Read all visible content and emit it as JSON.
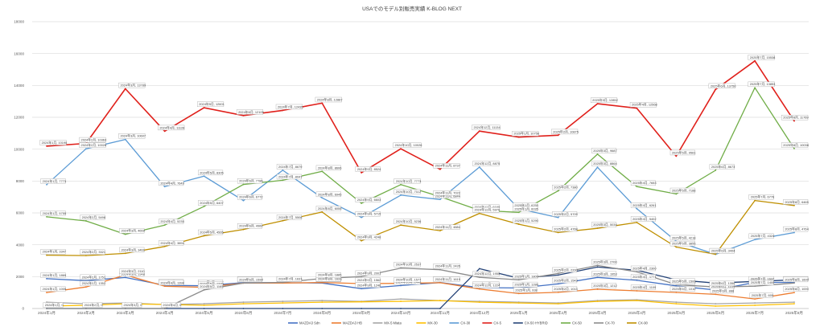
{
  "chart_data": {
    "type": "line",
    "title": "USAでのモデル別販売実績 K-BLOG NEXT",
    "xlabel": "",
    "ylabel": "",
    "ylim": [
      0,
      18000
    ],
    "yticks": [
      "0",
      "2000",
      "4000",
      "6000",
      "8000",
      "10000",
      "12000",
      "14000",
      "16000",
      "18000"
    ],
    "grid": true,
    "legend": "bottom",
    "x": [
      "2024年1月",
      "2024年2月",
      "2024年3月",
      "2024年4月",
      "2024年5月",
      "2024年6月",
      "2024年7月",
      "2024年8月",
      "2024年9月",
      "2024年10月",
      "2024年11月",
      "2024年12月",
      "2025年1月",
      "2025年2月",
      "2025年3月",
      "2025年4月",
      "2025年5月",
      "2025年6月",
      "2025年7月",
      "2025年8月"
    ],
    "series": [
      {
        "name": "MAZDA3 Sdn",
        "color": "#4472c4",
        "values": [
          1869,
          1751,
          1948,
          1457,
          1427,
          1622,
          1621,
          1600,
          1246,
          1440,
          1631,
          1310,
          1286,
          1543,
          1953,
          1771,
          1420,
          1159,
          1637,
          1639
        ]
      },
      {
        "name": "MAZDA3 HB",
        "color": "#ed7d31",
        "values": [
          1005,
          1352,
          2110,
          1398,
          1330,
          1592,
          1599,
          1633,
          1562,
          1577,
          1619,
          1224,
          938,
          1013,
          1212,
          1109,
          1010,
          888,
          600,
          1000
        ]
      },
      {
        "name": "MX-5 Miata",
        "color": "#a5a5a5",
        "values": [
          400,
          300,
          350,
          250,
          300,
          400,
          450,
          500,
          450,
          600,
          500,
          450,
          400,
          350,
          500,
          550,
          400,
          300,
          350,
          400
        ]
      },
      {
        "name": "MX-30",
        "color": "#ffc000",
        "values": [
          150,
          200,
          300,
          250,
          200,
          300,
          350,
          400,
          420,
          450,
          500,
          400,
          350,
          300,
          450,
          500,
          300,
          150,
          200,
          300
        ]
      },
      {
        "name": "CX-30",
        "color": "#5b9bd5",
        "values": [
          7773,
          10026,
          10607,
          7649,
          8305,
          6772,
          8679,
          6945,
          5715,
          7112,
          6844,
          8875,
          6255,
          5709,
          8864,
          6261,
          4218,
          3400,
          4324,
          4764
        ]
      },
      {
        "name": "CX-5",
        "color": "#e0201b",
        "values": [
          10190,
          10363,
          13789,
          11128,
          12601,
          12109,
          12435,
          12887,
          8524,
          10026,
          8737,
          11134,
          10756,
          10875,
          12852,
          12568,
          9561,
          13750,
          15538,
          11769
        ]
      },
      {
        "name": "CX-50 HYBRID",
        "color": "#264478",
        "values": [
          0,
          0,
          0,
          0,
          0,
          0,
          0,
          0,
          0,
          0,
          0,
          2500,
          1900,
          2100,
          2600,
          2400,
          1800,
          1600,
          1700,
          1800
        ]
      },
      {
        "name": "CX-50",
        "color": "#70ad47",
        "values": [
          5755,
          5498,
          4659,
          5235,
          6407,
          7786,
          8047,
          8606,
          6603,
          7773,
          7022,
          6160,
          6035,
          7380,
          9687,
          7653,
          7188,
          8673,
          13853,
          10038
        ]
      },
      {
        "name": "CX-70",
        "color": "#8c8c8c",
        "values": [
          0,
          0,
          0,
          0,
          1165,
          1599,
          1637,
          1885,
          2001,
          2537,
          2435,
          1955,
          1800,
          2200,
          2700,
          2300,
          1500,
          1350,
          1400,
          1600
        ]
      },
      {
        "name": "CX-90",
        "color": "#bf8f00",
        "values": [
          3347,
          3321,
          3461,
          3894,
          4565,
          4960,
          5508,
          6055,
          4248,
          5236,
          4884,
          5970,
          5290,
          4768,
          5034,
          5402,
          3855,
          3404,
          6776,
          6465
        ]
      }
    ]
  }
}
